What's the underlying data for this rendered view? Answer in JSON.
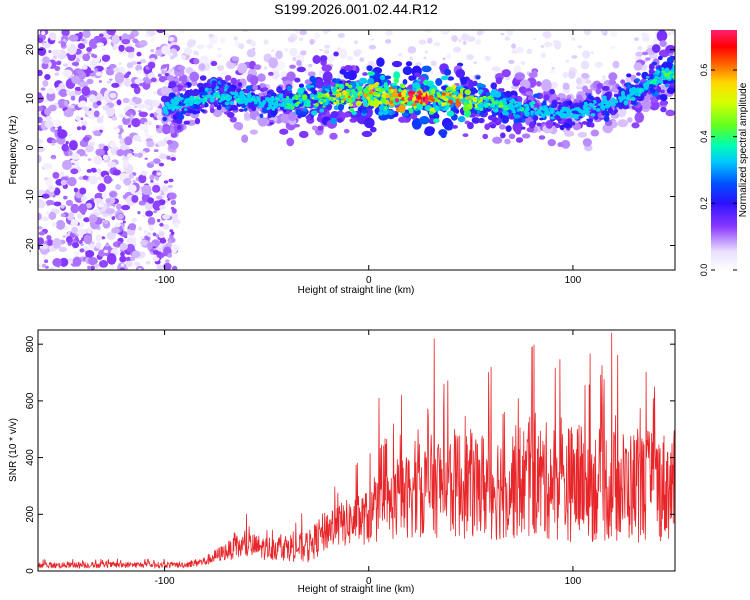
{
  "title": "S199.2026.001.02.44.R12",
  "chart_data": [
    {
      "type": "heatmap",
      "title": "S199.2026.001.02.44.R12",
      "xlabel": "Height of straight line (km)",
      "ylabel": "Frequency (Hz)",
      "xlim": [
        -162,
        150
      ],
      "ylim": [
        -25,
        24
      ],
      "xticks": [
        -100,
        0,
        100
      ],
      "yticks": [
        -20,
        -10,
        0,
        10,
        20
      ],
      "xticklabels": [
        "-100",
        "0",
        "100"
      ],
      "yticklabels": [
        "-20",
        "-10",
        "0",
        "10",
        "20"
      ],
      "colorbar": {
        "label": "Normalized spectral amplitude",
        "range": [
          0,
          0.72
        ],
        "ticks": [
          0.0,
          0.2,
          0.4,
          0.6
        ],
        "ticklabels": [
          "0.0",
          "0.2",
          "0.4",
          "0.6"
        ]
      },
      "signal_band": {
        "description": "dominant spectral ridge",
        "x": [
          -100,
          -75,
          -50,
          -25,
          0,
          25,
          50,
          75,
          100,
          125,
          145
        ],
        "center_freq": [
          8,
          11,
          9,
          10,
          11,
          10,
          10,
          8,
          7,
          10,
          15
        ],
        "peak_amplitude": [
          0.3,
          0.35,
          0.3,
          0.45,
          0.6,
          0.7,
          0.5,
          0.35,
          0.25,
          0.3,
          0.4
        ]
      },
      "noise_region_x": [
        -162,
        -98
      ]
    },
    {
      "type": "line",
      "xlabel": "Height of straight line (km)",
      "ylabel": "SNR (10 * v/v)",
      "xlim": [
        -162,
        150
      ],
      "ylim": [
        0,
        850
      ],
      "xticks": [
        -100,
        0,
        100
      ],
      "yticks": [
        0,
        200,
        400,
        600,
        800
      ],
      "xticklabels": [
        "-100",
        "0",
        "100"
      ],
      "yticklabels": [
        "0",
        "200",
        "400",
        "600",
        "800"
      ],
      "series": [
        {
          "name": "SNR",
          "color": "#e8262a",
          "envelope_x": [
            -162,
            -90,
            -80,
            -70,
            -60,
            -50,
            -40,
            -30,
            -20,
            -10,
            0,
            10,
            20,
            30,
            40,
            60,
            80,
            100,
            120,
            150
          ],
          "baseline_y": [
            20,
            22,
            35,
            70,
            90,
            80,
            85,
            80,
            150,
            170,
            190,
            230,
            270,
            300,
            310,
            300,
            320,
            310,
            300,
            300
          ],
          "spread_y": [
            15,
            15,
            25,
            45,
            70,
            60,
            70,
            80,
            110,
            120,
            140,
            180,
            220,
            260,
            280,
            280,
            300,
            300,
            290,
            280
          ],
          "spikes": [
            {
              "x": 5,
              "y": 610
            },
            {
              "x": 16,
              "y": 620
            },
            {
              "x": 32,
              "y": 820
            },
            {
              "x": 60,
              "y": 720
            },
            {
              "x": 80,
              "y": 790
            },
            {
              "x": 119,
              "y": 840
            },
            {
              "x": 140,
              "y": 650
            }
          ]
        }
      ]
    }
  ]
}
